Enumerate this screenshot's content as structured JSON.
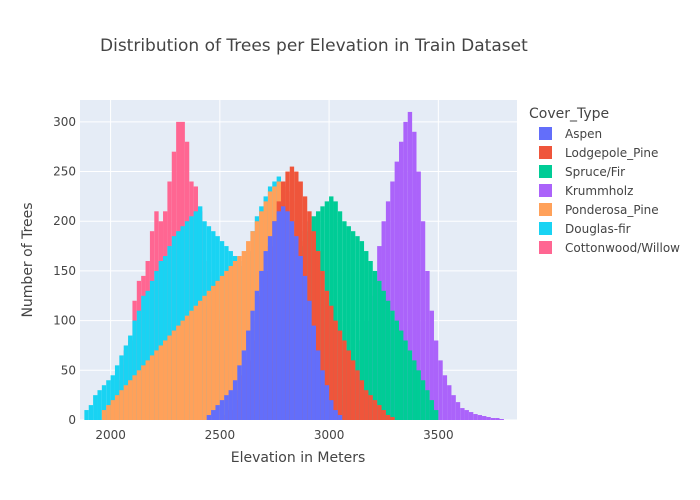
{
  "chart_data": {
    "type": "bar",
    "barmode": "overlay",
    "title": "Distribution of Trees per Elevation in Train Dataset",
    "xlabel": "Elevation in Meters",
    "ylabel": "Number of Trees",
    "xlim": [
      1860,
      3860
    ],
    "ylim": [
      0,
      322
    ],
    "xticks": [
      2000,
      2500,
      3000,
      3500
    ],
    "yticks": [
      0,
      50,
      100,
      150,
      200,
      250,
      300
    ],
    "grid": true,
    "legend_title": "Cover_Type",
    "legend_position": "right",
    "bin_width": 20,
    "series": [
      {
        "name": "Cottonwood/Willow",
        "color": "#FF6692",
        "bins": [
          [
            1980,
            5
          ],
          [
            2000,
            20
          ],
          [
            2020,
            40
          ],
          [
            2040,
            55
          ],
          [
            2060,
            70
          ],
          [
            2080,
            80
          ],
          [
            2100,
            120
          ],
          [
            2120,
            140
          ],
          [
            2140,
            145
          ],
          [
            2160,
            160
          ],
          [
            2180,
            190
          ],
          [
            2200,
            210
          ],
          [
            2220,
            200
          ],
          [
            2240,
            210
          ],
          [
            2260,
            240
          ],
          [
            2280,
            270
          ],
          [
            2300,
            300
          ],
          [
            2320,
            300
          ],
          [
            2340,
            280
          ],
          [
            2360,
            240
          ],
          [
            2380,
            235
          ],
          [
            2400,
            210
          ],
          [
            2420,
            160
          ],
          [
            2440,
            115
          ],
          [
            2460,
            90
          ],
          [
            2480,
            100
          ],
          [
            2500,
            70
          ],
          [
            2520,
            60
          ],
          [
            2540,
            50
          ],
          [
            2560,
            30
          ],
          [
            2580,
            20
          ]
        ]
      },
      {
        "name": "Douglas-fir",
        "color": "#19D3F3",
        "bins": [
          [
            1880,
            10
          ],
          [
            1900,
            15
          ],
          [
            1920,
            25
          ],
          [
            1940,
            30
          ],
          [
            1960,
            35
          ],
          [
            1980,
            40
          ],
          [
            2000,
            45
          ],
          [
            2020,
            55
          ],
          [
            2040,
            65
          ],
          [
            2060,
            75
          ],
          [
            2080,
            85
          ],
          [
            2100,
            100
          ],
          [
            2120,
            110
          ],
          [
            2140,
            125
          ],
          [
            2160,
            130
          ],
          [
            2180,
            140
          ],
          [
            2200,
            150
          ],
          [
            2220,
            160
          ],
          [
            2240,
            165
          ],
          [
            2260,
            175
          ],
          [
            2280,
            185
          ],
          [
            2300,
            190
          ],
          [
            2320,
            195
          ],
          [
            2340,
            200
          ],
          [
            2360,
            205
          ],
          [
            2380,
            210
          ],
          [
            2400,
            215
          ],
          [
            2420,
            200
          ],
          [
            2440,
            195
          ],
          [
            2460,
            190
          ],
          [
            2480,
            185
          ],
          [
            2500,
            180
          ],
          [
            2520,
            175
          ],
          [
            2540,
            170
          ],
          [
            2560,
            165
          ],
          [
            2580,
            160
          ],
          [
            2600,
            155
          ],
          [
            2620,
            170
          ],
          [
            2640,
            190
          ],
          [
            2660,
            205
          ],
          [
            2680,
            215
          ],
          [
            2700,
            225
          ],
          [
            2720,
            235
          ],
          [
            2740,
            240
          ],
          [
            2760,
            245
          ],
          [
            2780,
            230
          ],
          [
            2800,
            210
          ],
          [
            2820,
            180
          ],
          [
            2840,
            150
          ]
        ]
      },
      {
        "name": "Ponderosa_Pine",
        "color": "#FFA15A",
        "bins": [
          [
            1960,
            10
          ],
          [
            1980,
            15
          ],
          [
            2000,
            20
          ],
          [
            2020,
            25
          ],
          [
            2040,
            30
          ],
          [
            2060,
            35
          ],
          [
            2080,
            40
          ],
          [
            2100,
            45
          ],
          [
            2120,
            50
          ],
          [
            2140,
            55
          ],
          [
            2160,
            60
          ],
          [
            2180,
            65
          ],
          [
            2200,
            70
          ],
          [
            2220,
            75
          ],
          [
            2240,
            80
          ],
          [
            2260,
            85
          ],
          [
            2280,
            90
          ],
          [
            2300,
            95
          ],
          [
            2320,
            100
          ],
          [
            2340,
            105
          ],
          [
            2360,
            110
          ],
          [
            2380,
            115
          ],
          [
            2400,
            120
          ],
          [
            2420,
            125
          ],
          [
            2440,
            130
          ],
          [
            2460,
            135
          ],
          [
            2480,
            140
          ],
          [
            2500,
            145
          ],
          [
            2520,
            150
          ],
          [
            2540,
            155
          ],
          [
            2560,
            160
          ],
          [
            2580,
            165
          ],
          [
            2600,
            170
          ],
          [
            2620,
            180
          ],
          [
            2640,
            190
          ],
          [
            2660,
            200
          ],
          [
            2680,
            210
          ],
          [
            2700,
            220
          ],
          [
            2720,
            230
          ],
          [
            2740,
            235
          ],
          [
            2760,
            240
          ],
          [
            2780,
            235
          ],
          [
            2800,
            230
          ],
          [
            2820,
            220
          ],
          [
            2840,
            200
          ],
          [
            2860,
            180
          ],
          [
            2880,
            160
          ],
          [
            2900,
            140
          ]
        ]
      },
      {
        "name": "Krummholz",
        "color": "#AB63FA",
        "bins": [
          [
            3020,
            10
          ],
          [
            3040,
            15
          ],
          [
            3060,
            25
          ],
          [
            3080,
            35
          ],
          [
            3100,
            45
          ],
          [
            3120,
            60
          ],
          [
            3140,
            80
          ],
          [
            3160,
            100
          ],
          [
            3180,
            125
          ],
          [
            3200,
            150
          ],
          [
            3220,
            175
          ],
          [
            3240,
            200
          ],
          [
            3260,
            220
          ],
          [
            3280,
            240
          ],
          [
            3300,
            260
          ],
          [
            3320,
            280
          ],
          [
            3340,
            300
          ],
          [
            3360,
            310
          ],
          [
            3380,
            290
          ],
          [
            3400,
            250
          ],
          [
            3420,
            200
          ],
          [
            3440,
            150
          ],
          [
            3460,
            110
          ],
          [
            3480,
            80
          ],
          [
            3500,
            60
          ],
          [
            3520,
            45
          ],
          [
            3540,
            35
          ],
          [
            3560,
            25
          ],
          [
            3580,
            18
          ],
          [
            3600,
            12
          ],
          [
            3620,
            10
          ],
          [
            3640,
            8
          ],
          [
            3660,
            6
          ],
          [
            3680,
            5
          ],
          [
            3700,
            4
          ],
          [
            3720,
            3
          ],
          [
            3740,
            2
          ],
          [
            3760,
            2
          ],
          [
            3780,
            1
          ]
        ]
      },
      {
        "name": "Spruce/Fir",
        "color": "#00CC96",
        "bins": [
          [
            2640,
            5
          ],
          [
            2660,
            10
          ],
          [
            2680,
            20
          ],
          [
            2700,
            30
          ],
          [
            2720,
            45
          ],
          [
            2740,
            60
          ],
          [
            2760,
            80
          ],
          [
            2780,
            100
          ],
          [
            2800,
            120
          ],
          [
            2820,
            140
          ],
          [
            2840,
            160
          ],
          [
            2860,
            175
          ],
          [
            2880,
            190
          ],
          [
            2900,
            200
          ],
          [
            2920,
            205
          ],
          [
            2940,
            210
          ],
          [
            2960,
            215
          ],
          [
            2980,
            220
          ],
          [
            3000,
            225
          ],
          [
            3020,
            220
          ],
          [
            3040,
            210
          ],
          [
            3060,
            200
          ],
          [
            3080,
            195
          ],
          [
            3100,
            190
          ],
          [
            3120,
            185
          ],
          [
            3140,
            180
          ],
          [
            3160,
            170
          ],
          [
            3180,
            160
          ],
          [
            3200,
            150
          ],
          [
            3220,
            140
          ],
          [
            3240,
            130
          ],
          [
            3260,
            120
          ],
          [
            3280,
            110
          ],
          [
            3300,
            100
          ],
          [
            3320,
            90
          ],
          [
            3340,
            80
          ],
          [
            3360,
            70
          ],
          [
            3380,
            60
          ],
          [
            3400,
            50
          ],
          [
            3420,
            40
          ],
          [
            3440,
            30
          ],
          [
            3460,
            20
          ],
          [
            3480,
            10
          ]
        ]
      },
      {
        "name": "Lodgepole_Pine",
        "color": "#EF553B",
        "bins": [
          [
            2520,
            5
          ],
          [
            2540,
            10
          ],
          [
            2560,
            20
          ],
          [
            2580,
            30
          ],
          [
            2600,
            45
          ],
          [
            2620,
            60
          ],
          [
            2640,
            80
          ],
          [
            2660,
            100
          ],
          [
            2680,
            125
          ],
          [
            2700,
            150
          ],
          [
            2720,
            175
          ],
          [
            2740,
            200
          ],
          [
            2760,
            220
          ],
          [
            2780,
            240
          ],
          [
            2800,
            250
          ],
          [
            2820,
            255
          ],
          [
            2840,
            250
          ],
          [
            2860,
            240
          ],
          [
            2880,
            225
          ],
          [
            2900,
            210
          ],
          [
            2920,
            190
          ],
          [
            2940,
            170
          ],
          [
            2960,
            150
          ],
          [
            2980,
            130
          ],
          [
            3000,
            115
          ],
          [
            3020,
            100
          ],
          [
            3040,
            90
          ],
          [
            3060,
            80
          ],
          [
            3080,
            70
          ],
          [
            3100,
            60
          ],
          [
            3120,
            50
          ],
          [
            3140,
            40
          ],
          [
            3160,
            30
          ],
          [
            3180,
            25
          ],
          [
            3200,
            20
          ],
          [
            3220,
            15
          ],
          [
            3240,
            10
          ],
          [
            3260,
            5
          ],
          [
            3280,
            3
          ]
        ]
      },
      {
        "name": "Aspen",
        "color": "#636EFA",
        "bins": [
          [
            2440,
            5
          ],
          [
            2460,
            10
          ],
          [
            2480,
            15
          ],
          [
            2500,
            20
          ],
          [
            2520,
            25
          ],
          [
            2540,
            30
          ],
          [
            2560,
            40
          ],
          [
            2580,
            55
          ],
          [
            2600,
            70
          ],
          [
            2620,
            90
          ],
          [
            2640,
            110
          ],
          [
            2660,
            130
          ],
          [
            2680,
            150
          ],
          [
            2700,
            170
          ],
          [
            2720,
            185
          ],
          [
            2740,
            200
          ],
          [
            2760,
            210
          ],
          [
            2780,
            215
          ],
          [
            2800,
            210
          ],
          [
            2820,
            200
          ],
          [
            2840,
            185
          ],
          [
            2860,
            165
          ],
          [
            2880,
            145
          ],
          [
            2900,
            120
          ],
          [
            2920,
            95
          ],
          [
            2940,
            70
          ],
          [
            2960,
            50
          ],
          [
            2980,
            35
          ],
          [
            3000,
            20
          ],
          [
            3020,
            10
          ],
          [
            3040,
            5
          ]
        ]
      }
    ],
    "legend_order": [
      "Aspen",
      "Lodgepole_Pine",
      "Spruce/Fir",
      "Krummholz",
      "Ponderosa_Pine",
      "Douglas-fir",
      "Cottonwood/Willow"
    ]
  }
}
